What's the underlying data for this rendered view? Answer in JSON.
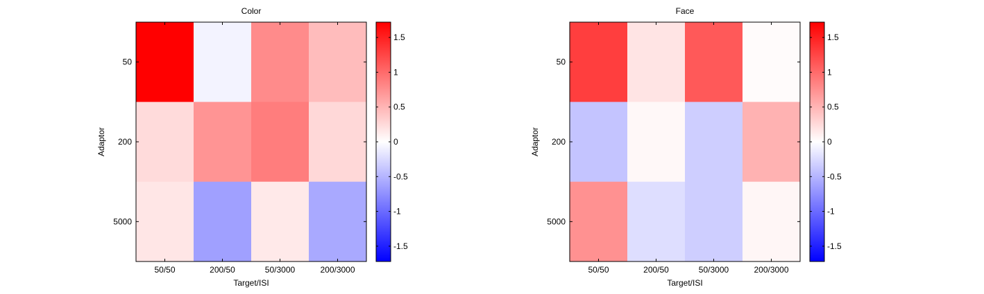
{
  "chart_data": [
    {
      "type": "heatmap",
      "title": "Color",
      "xlabel": "Target/ISI",
      "ylabel": "Adaptor",
      "x_categories": [
        "50/50",
        "200/50",
        "50/3000",
        "200/3000"
      ],
      "y_categories": [
        "50",
        "200",
        "5000"
      ],
      "values": [
        [
          1.72,
          -0.08,
          0.78,
          0.45
        ],
        [
          0.24,
          0.72,
          0.88,
          0.26
        ],
        [
          0.17,
          -0.64,
          0.15,
          -0.58
        ]
      ],
      "colorbar": {
        "min": -1.72,
        "max": 1.72,
        "ticks": [
          1.5,
          1,
          0.5,
          0,
          -0.5,
          -1,
          -1.5
        ],
        "tick_labels": [
          "1.5",
          "1",
          "0.5",
          "0",
          "-0.5",
          "-1",
          "-1.5"
        ]
      },
      "colors": {
        "negative": "#0000ff",
        "zero": "#ffffff",
        "positive": "#ff0000"
      }
    },
    {
      "type": "heatmap",
      "title": "Face",
      "xlabel": "Target/ISI",
      "ylabel": "Adaptor",
      "x_categories": [
        "50/50",
        "200/50",
        "50/3000",
        "200/3000"
      ],
      "y_categories": [
        "50",
        "200",
        "5000"
      ],
      "values": [
        [
          1.3,
          0.18,
          1.12,
          0.03
        ],
        [
          -0.4,
          0.05,
          -0.33,
          0.52
        ],
        [
          0.74,
          -0.22,
          -0.33,
          0.06
        ]
      ],
      "colorbar": {
        "min": -1.72,
        "max": 1.72,
        "ticks": [
          1.5,
          1,
          0.5,
          0,
          -0.5,
          -1,
          -1.5
        ],
        "tick_labels": [
          "1.5",
          "1",
          "0.5",
          "0",
          "-0.5",
          "-1",
          "-1.5"
        ]
      },
      "colors": {
        "negative": "#0000ff",
        "zero": "#ffffff",
        "positive": "#ff0000"
      }
    }
  ]
}
